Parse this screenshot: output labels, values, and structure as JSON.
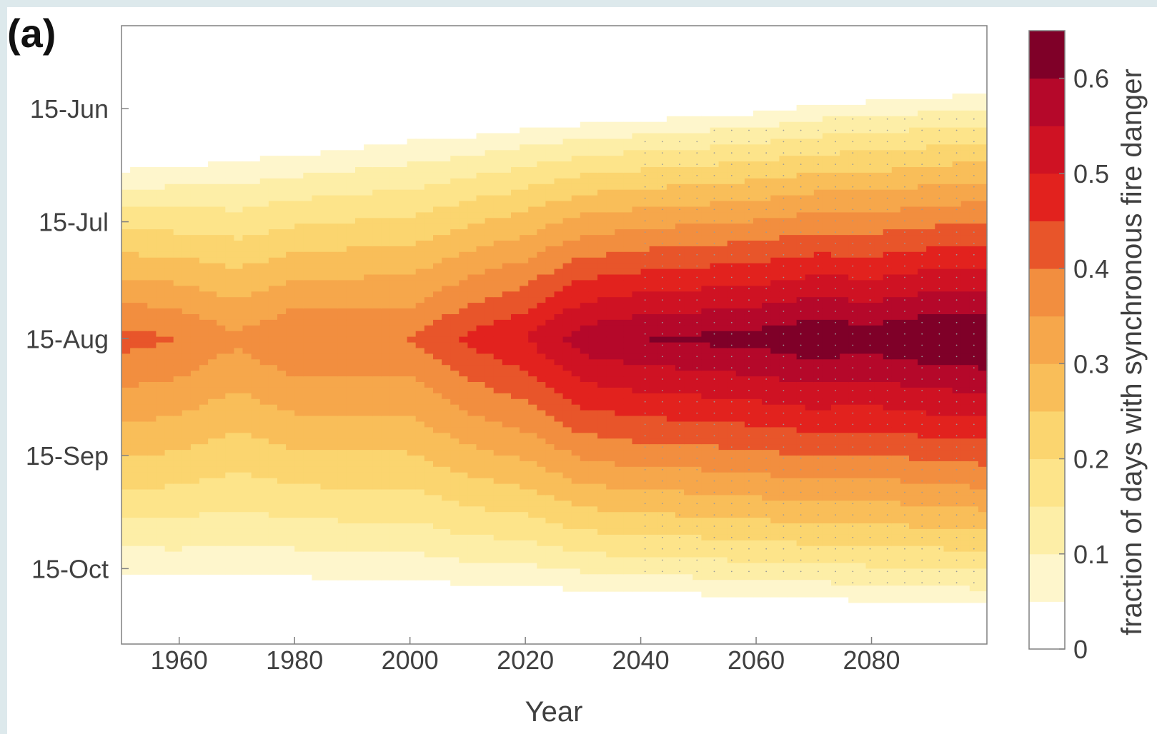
{
  "panel_label": "(a)",
  "chart_data": {
    "type": "heatmap",
    "xlabel": "Year",
    "ylabel": "",
    "xlim": [
      1950,
      2100
    ],
    "x_ticks": [
      1960,
      1980,
      2000,
      2020,
      2040,
      2060,
      2080
    ],
    "y_ticks": [
      "15-Jun",
      "15-Jul",
      "15-Aug",
      "15-Sep",
      "15-Oct"
    ],
    "colorbar": {
      "label": "fraction of days with synchronous fire danger",
      "range": [
        0,
        0.65
      ],
      "ticks": [
        0,
        0.1,
        0.2,
        0.3,
        0.4,
        0.5,
        0.6
      ],
      "levels": [
        0,
        0.05,
        0.1,
        0.15,
        0.2,
        0.25,
        0.3,
        0.35,
        0.4,
        0.45,
        0.5,
        0.55,
        0.6,
        0.65
      ],
      "colors": [
        "#ffffff",
        "#fef6cc",
        "#fdeea7",
        "#fde48a",
        "#fbd56f",
        "#f9be59",
        "#f6a74b",
        "#f28e3f",
        "#e8552a",
        "#e2221e",
        "#cf1223",
        "#b5082a",
        "#7f0028"
      ]
    },
    "peak_date": "15-Aug",
    "years": [
      1950,
      1960,
      1970,
      1980,
      1990,
      2000,
      2010,
      2020,
      2030,
      2040,
      2050,
      2060,
      2070,
      2080,
      2090,
      2100
    ],
    "peak_fraction": [
      0.39,
      0.37,
      0.33,
      0.37,
      0.37,
      0.37,
      0.43,
      0.47,
      0.55,
      0.57,
      0.58,
      0.59,
      0.61,
      0.6,
      0.62,
      0.63
    ],
    "season_start": [
      "30-Jun",
      "29-Jun",
      "27-Jun",
      "26-Jun",
      "24-Jun",
      "22-Jun",
      "21-Jun",
      "19-Jun",
      "18-Jun",
      "17-Jun",
      "16-Jun",
      "15-Jun",
      "13-Jun",
      "12-Jun",
      "11-Jun",
      "10-Jun"
    ],
    "season_end": [
      "18-Oct",
      "19-Oct",
      "19-Oct",
      "19-Oct",
      "20-Oct",
      "20-Oct",
      "21-Oct",
      "21-Oct",
      "22-Oct",
      "23-Oct",
      "23-Oct",
      "24-Oct",
      "24-Oct",
      "25-Oct",
      "25-Oct",
      "26-Oct"
    ],
    "stippling": "significant change, approx. 2040–2100",
    "grid": false
  }
}
